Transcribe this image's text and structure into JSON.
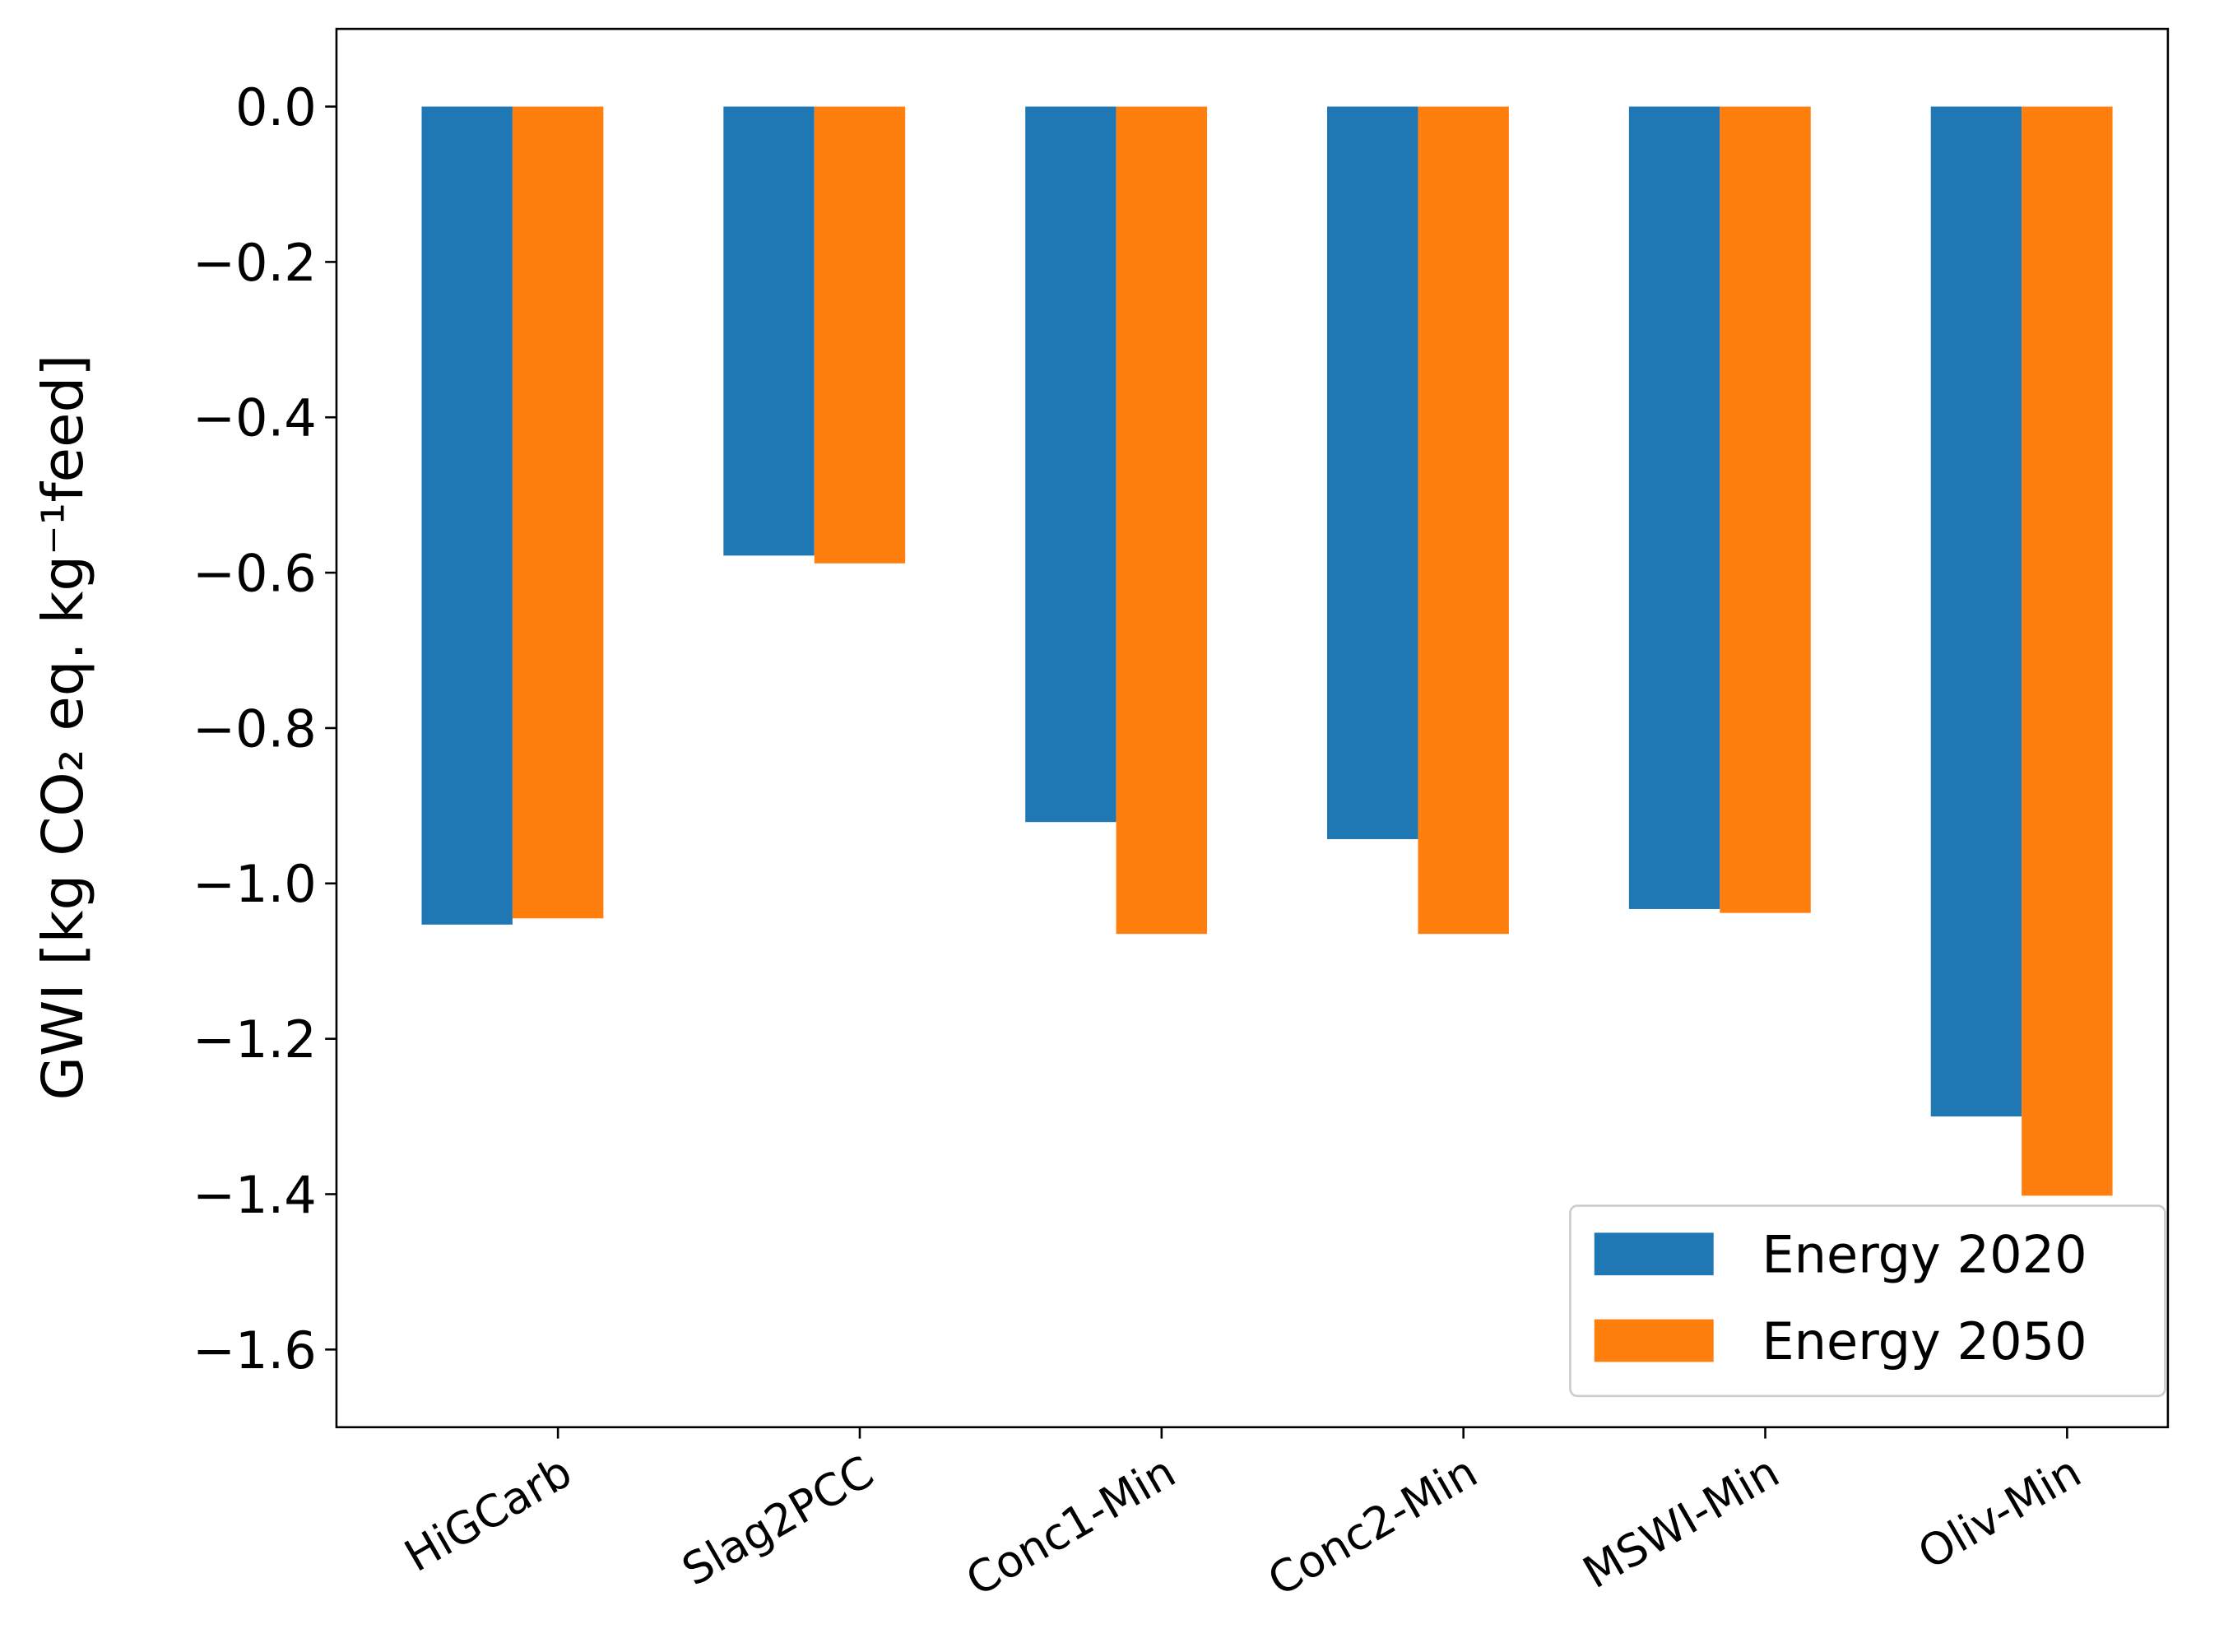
{
  "chart_data": {
    "type": "bar",
    "ylabel": "GWI [kg CO₂ eq. kg⁻¹feed]",
    "categories": [
      "HiGCarb",
      "Slag2PCC",
      "Conc1-Min",
      "Conc2-Min",
      "MSWI-Min",
      "Oliv-Min"
    ],
    "series": [
      {
        "name": "Energy 2020",
        "color": "#1f77b4",
        "values": [
          -1.053,
          -0.578,
          -0.921,
          -0.943,
          -1.033,
          -1.3
        ]
      },
      {
        "name": "Energy 2050",
        "color": "#ff7f0e",
        "values": [
          -1.045,
          -0.588,
          -1.065,
          -1.065,
          -1.038,
          -1.402
        ]
      }
    ],
    "ylim": [
      -1.7,
      0.1
    ],
    "yticks": [
      {
        "value": 0,
        "label": "0.0"
      },
      {
        "value": -0.2,
        "label": "−0.2"
      },
      {
        "value": -0.4,
        "label": "−0.4"
      },
      {
        "value": -0.6,
        "label": "−0.6"
      },
      {
        "value": -0.8,
        "label": "−0.8"
      },
      {
        "value": -1.0,
        "label": "−1.0"
      },
      {
        "value": -1.2,
        "label": "−1.2"
      },
      {
        "value": -1.4,
        "label": "−1.4"
      },
      {
        "value": -1.6,
        "label": "−1.6"
      }
    ],
    "grid": false,
    "legend": "lower right"
  }
}
